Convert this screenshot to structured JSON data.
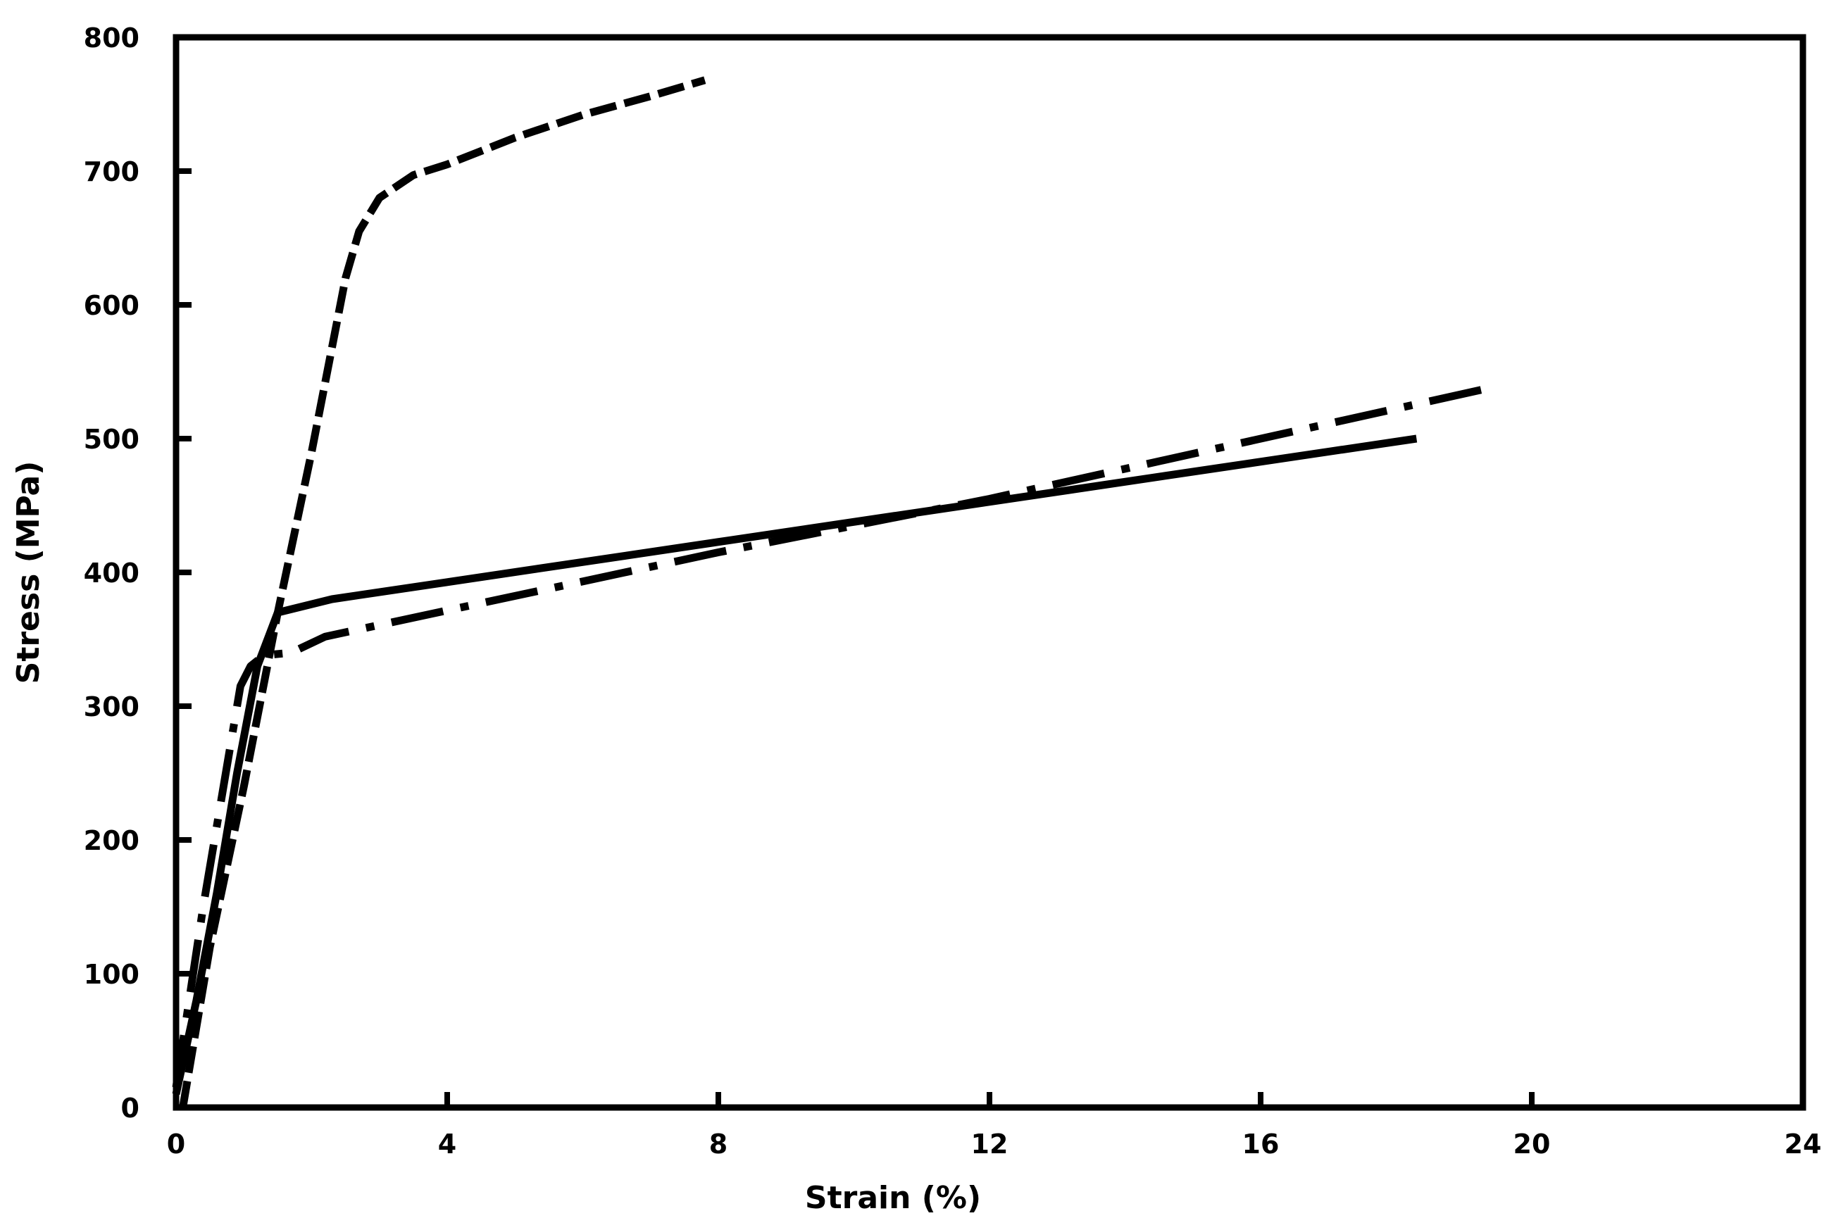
{
  "chart_data": {
    "type": "line",
    "title": "",
    "xlabel": "Strain (%)",
    "ylabel": "Stress (MPa)",
    "xlim": [
      0,
      24
    ],
    "ylim": [
      0,
      800
    ],
    "xticks": [
      0,
      4,
      8,
      12,
      16,
      20,
      24
    ],
    "yticks": [
      0,
      100,
      200,
      300,
      400,
      500,
      600,
      700,
      800
    ],
    "grid": false,
    "legend": null,
    "series": [
      {
        "name": "solid",
        "style": "solid",
        "color": "#000000",
        "x": [
          0,
          0.3,
          0.6,
          0.9,
          1.2,
          1.5,
          2.3,
          18.3
        ],
        "y": [
          10,
          80,
          160,
          250,
          330,
          370,
          380,
          500
        ]
      },
      {
        "name": "dashed",
        "style": "dashed",
        "color": "#000000",
        "x": [
          0.1,
          0.5,
          1.0,
          1.5,
          2.0,
          2.5,
          2.7,
          3.0,
          3.5,
          4.0,
          5.0,
          6.0,
          7.0,
          7.8
        ],
        "y": [
          0,
          120,
          240,
          370,
          490,
          620,
          655,
          680,
          697,
          705,
          725,
          742,
          756,
          768
        ]
      },
      {
        "name": "dash-dot",
        "style": "dashdot",
        "color": "#000000",
        "x": [
          0,
          0.4,
          0.8,
          0.95,
          1.1,
          1.3,
          1.7,
          2.2,
          8.0,
          12.0,
          19.3
        ],
        "y": [
          15,
          150,
          270,
          315,
          330,
          338,
          340,
          352,
          415,
          455,
          537
        ]
      }
    ]
  }
}
